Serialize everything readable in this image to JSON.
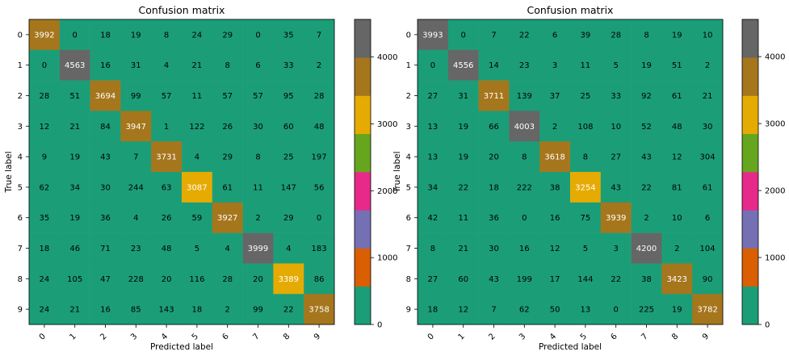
{
  "chart_data": [
    {
      "type": "heatmap",
      "title": "Confusion matrix",
      "xlabel": "Predicted label",
      "ylabel": "True label",
      "x_categories": [
        "0",
        "1",
        "2",
        "3",
        "4",
        "5",
        "6",
        "7",
        "8",
        "9"
      ],
      "y_categories": [
        "0",
        "1",
        "2",
        "3",
        "4",
        "5",
        "6",
        "7",
        "8",
        "9"
      ],
      "values": [
        [
          3992,
          0,
          18,
          19,
          8,
          24,
          29,
          0,
          35,
          7
        ],
        [
          0,
          4563,
          16,
          31,
          4,
          21,
          8,
          6,
          33,
          2
        ],
        [
          28,
          51,
          3694,
          99,
          57,
          11,
          57,
          57,
          95,
          28
        ],
        [
          12,
          21,
          84,
          3947,
          1,
          122,
          26,
          30,
          60,
          48
        ],
        [
          9,
          19,
          43,
          7,
          3731,
          4,
          29,
          8,
          25,
          197
        ],
        [
          62,
          34,
          30,
          244,
          63,
          3087,
          61,
          11,
          147,
          56
        ],
        [
          35,
          19,
          36,
          4,
          26,
          59,
          3927,
          2,
          29,
          0
        ],
        [
          18,
          46,
          71,
          23,
          48,
          5,
          4,
          3999,
          4,
          183
        ],
        [
          24,
          105,
          47,
          228,
          20,
          116,
          28,
          20,
          3389,
          86
        ],
        [
          24,
          21,
          16,
          85,
          143,
          18,
          2,
          99,
          22,
          3758
        ]
      ],
      "colorbar": {
        "vmin": 0,
        "vmax": 4563,
        "ticks": [
          0,
          1000,
          2000,
          3000,
          4000
        ]
      }
    },
    {
      "type": "heatmap",
      "title": "Confusion matrix",
      "xlabel": "Predicted label",
      "ylabel": "True label",
      "x_categories": [
        "0",
        "1",
        "2",
        "3",
        "4",
        "5",
        "6",
        "7",
        "8",
        "9"
      ],
      "y_categories": [
        "0",
        "1",
        "2",
        "3",
        "4",
        "5",
        "6",
        "7",
        "8",
        "9"
      ],
      "values": [
        [
          3993,
          0,
          7,
          22,
          6,
          39,
          28,
          8,
          19,
          10
        ],
        [
          0,
          4556,
          14,
          23,
          3,
          11,
          5,
          19,
          51,
          2
        ],
        [
          27,
          31,
          3711,
          139,
          37,
          25,
          33,
          92,
          61,
          21
        ],
        [
          13,
          19,
          66,
          4003,
          2,
          108,
          10,
          52,
          48,
          30
        ],
        [
          13,
          19,
          20,
          8,
          3618,
          8,
          27,
          43,
          12,
          304
        ],
        [
          34,
          22,
          18,
          222,
          38,
          3254,
          43,
          22,
          81,
          61
        ],
        [
          42,
          11,
          36,
          0,
          16,
          75,
          3939,
          2,
          10,
          6
        ],
        [
          8,
          21,
          30,
          16,
          12,
          5,
          3,
          4200,
          2,
          104
        ],
        [
          27,
          60,
          43,
          199,
          17,
          144,
          22,
          38,
          3423,
          90
        ],
        [
          18,
          12,
          7,
          62,
          50,
          13,
          0,
          225,
          19,
          3782
        ]
      ],
      "colorbar": {
        "vmin": 0,
        "vmax": 4556,
        "ticks": [
          0,
          1000,
          2000,
          3000,
          4000
        ]
      }
    }
  ],
  "colormap": [
    "#1b9e77",
    "#d95f02",
    "#7570b3",
    "#e7298a",
    "#66a61e",
    "#e6ab02",
    "#a6761d",
    "#666666"
  ]
}
